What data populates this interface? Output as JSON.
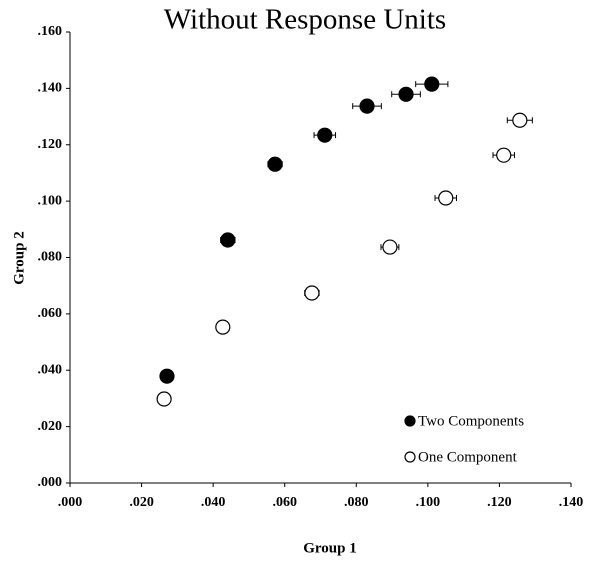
{
  "chart_data": {
    "type": "scatter",
    "title": "Without Response Units",
    "x_label": "Group 1",
    "y_label": "Group 2",
    "xlim": [
      0,
      0.14
    ],
    "ylim": [
      0,
      0.16
    ],
    "xticks": [
      {
        "value": 0,
        "label": ".000"
      },
      {
        "value": 0.02,
        "label": ".020"
      },
      {
        "value": 0.04,
        "label": ".040"
      },
      {
        "value": 0.06,
        "label": ".060"
      },
      {
        "value": 0.08,
        "label": ".080"
      },
      {
        "value": 0.1,
        "label": ".100"
      },
      {
        "value": 0.12,
        "label": ".120"
      },
      {
        "value": 0.14,
        "label": ".140"
      }
    ],
    "yticks": [
      {
        "value": 0,
        "label": ".000"
      },
      {
        "value": 0.02,
        "label": ".020"
      },
      {
        "value": 0.04,
        "label": ".040"
      },
      {
        "value": 0.06,
        "label": ".060"
      },
      {
        "value": 0.08,
        "label": ".080"
      },
      {
        "value": 0.1,
        "label": ".100"
      },
      {
        "value": 0.12,
        "label": ".120"
      },
      {
        "value": 0.14,
        "label": ".140"
      },
      {
        "value": 0.16,
        "label": ".160"
      }
    ],
    "grid": false,
    "legend_position": "lower right",
    "series": [
      {
        "name": "Two Components",
        "color": "#000000",
        "filled": true,
        "x": [
          0.0271,
          0.0441,
          0.0573,
          0.0712,
          0.083,
          0.0939,
          0.1011
        ],
        "values": [
          0.0379,
          0.0862,
          0.1131,
          0.1234,
          0.1337,
          0.1379,
          0.1415
        ],
        "xerr": [
          0.0005,
          0.002,
          0.002,
          0.003,
          0.004,
          0.004,
          0.0045
        ],
        "yerr": [
          0.0005,
          0.001,
          0.0015,
          0.0015,
          0.0015,
          0.002,
          0.0018
        ]
      },
      {
        "name": "One Component",
        "color": "#000000",
        "filled": false,
        "x": [
          0.0263,
          0.0427,
          0.0676,
          0.0894,
          0.105,
          0.1212,
          0.1257
        ],
        "values": [
          0.0298,
          0.0553,
          0.0674,
          0.0837,
          0.1011,
          0.1163,
          0.1287
        ],
        "xerr": [
          0.0003,
          0.0003,
          0.002,
          0.0025,
          0.003,
          0.003,
          0.0035
        ],
        "yerr": [
          0.0003,
          0.0003,
          0.001,
          0.001,
          0.0012,
          0.0015,
          0.0015
        ]
      }
    ]
  }
}
